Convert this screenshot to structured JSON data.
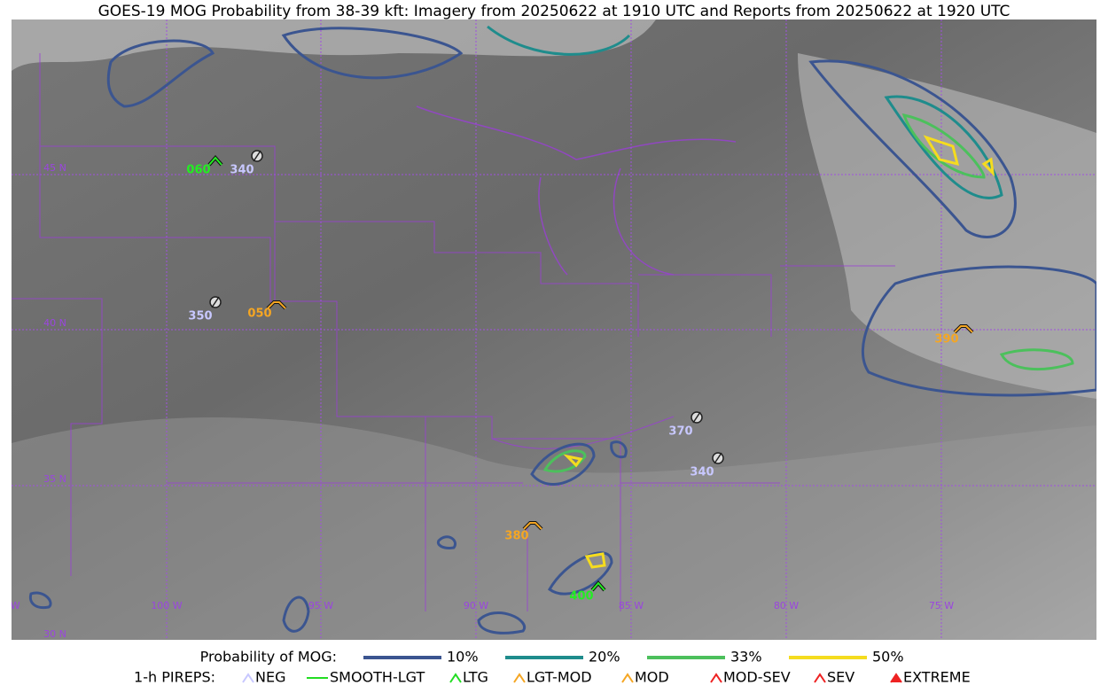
{
  "title": "GOES-19 MOG Probability from 38-39 kft: Imagery from 20250622 at 1910 UTC and Reports from 20250622 at 1920 UTC",
  "latitude_labels": [
    "45 N",
    "40 N",
    "35 N",
    "30 N"
  ],
  "longitude_labels": [
    "105 W",
    "100 W",
    "95 W",
    "90 W",
    "85 W",
    "80 W",
    "75 W"
  ],
  "reports": [
    "060",
    "340",
    "350",
    "050",
    "370",
    "340",
    "380",
    "390",
    "400"
  ],
  "legend": {
    "probability_title": "Probability of MOG:",
    "probability_levels": [
      "10%",
      "20%",
      "33%",
      "50%"
    ],
    "pirep_title": "1-h PIREPS:",
    "pirep_types": [
      "NEG",
      "SMOOTH-LGT",
      "LTG",
      "LGT-MOD",
      "MOD",
      "MOD-SEV",
      "SEV",
      "EXTREME"
    ]
  }
}
